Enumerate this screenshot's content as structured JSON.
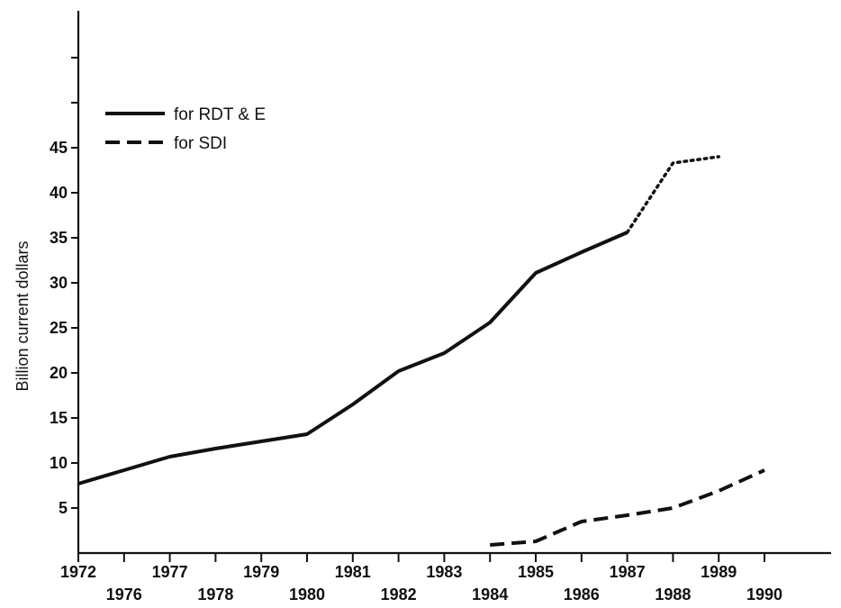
{
  "chart_data": {
    "type": "line",
    "title": "",
    "xlabel": "",
    "ylabel": "Billion current dollars",
    "x_categories": [
      "1972",
      "1976",
      "1977",
      "1978",
      "1979",
      "1980",
      "1981",
      "1982",
      "1983",
      "1984",
      "1985",
      "1986",
      "1987",
      "1988",
      "1989",
      "1990"
    ],
    "y_ticks": [
      5,
      10,
      15,
      20,
      25,
      30,
      35,
      40,
      45
    ],
    "ylim": [
      0,
      60
    ],
    "grid": false,
    "legend_position": "top-left",
    "series": [
      {
        "name": "for RDT & E",
        "style": "solid",
        "points": [
          {
            "x": "1972",
            "y": 7.7
          },
          {
            "x": "1976",
            "y": 9.2
          },
          {
            "x": "1977",
            "y": 10.7
          },
          {
            "x": "1978",
            "y": 11.6
          },
          {
            "x": "1979",
            "y": 12.4
          },
          {
            "x": "1980",
            "y": 13.2
          },
          {
            "x": "1981",
            "y": 16.5
          },
          {
            "x": "1982",
            "y": 20.2
          },
          {
            "x": "1983",
            "y": 22.2
          },
          {
            "x": "1984",
            "y": 25.6
          },
          {
            "x": "1985",
            "y": 31.1
          },
          {
            "x": "1986",
            "y": 33.4
          },
          {
            "x": "1987",
            "y": 35.6
          }
        ]
      },
      {
        "name": "",
        "style": "dotted",
        "points": [
          {
            "x": "1987",
            "y": 35.6
          },
          {
            "x": "1988",
            "y": 43.3
          },
          {
            "x": "1989",
            "y": 44.0
          }
        ]
      },
      {
        "name": "for SDI",
        "style": "dashed",
        "points": [
          {
            "x": "1984",
            "y": 0.9
          },
          {
            "x": "1985",
            "y": 1.3
          },
          {
            "x": "1986",
            "y": 3.5
          },
          {
            "x": "1987",
            "y": 4.2
          },
          {
            "x": "1988",
            "y": 5.0
          },
          {
            "x": "1989",
            "y": 6.9
          },
          {
            "x": "1990",
            "y": 9.2
          }
        ]
      }
    ],
    "colors": {
      "ink": "#111111",
      "background": "#ffffff"
    }
  }
}
